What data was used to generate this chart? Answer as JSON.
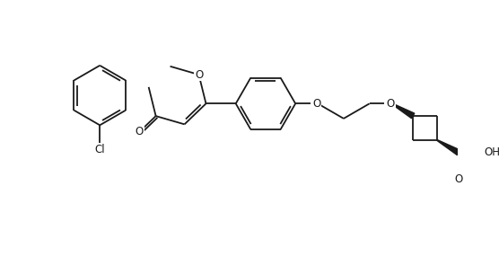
{
  "bg_color": "#ffffff",
  "line_color": "#1a1a1a",
  "line_width": 1.3,
  "figsize": [
    5.56,
    2.86
  ],
  "dpi": 100,
  "xlim": [
    -0.5,
    10.5
  ],
  "ylim": [
    -0.5,
    5.0
  ]
}
